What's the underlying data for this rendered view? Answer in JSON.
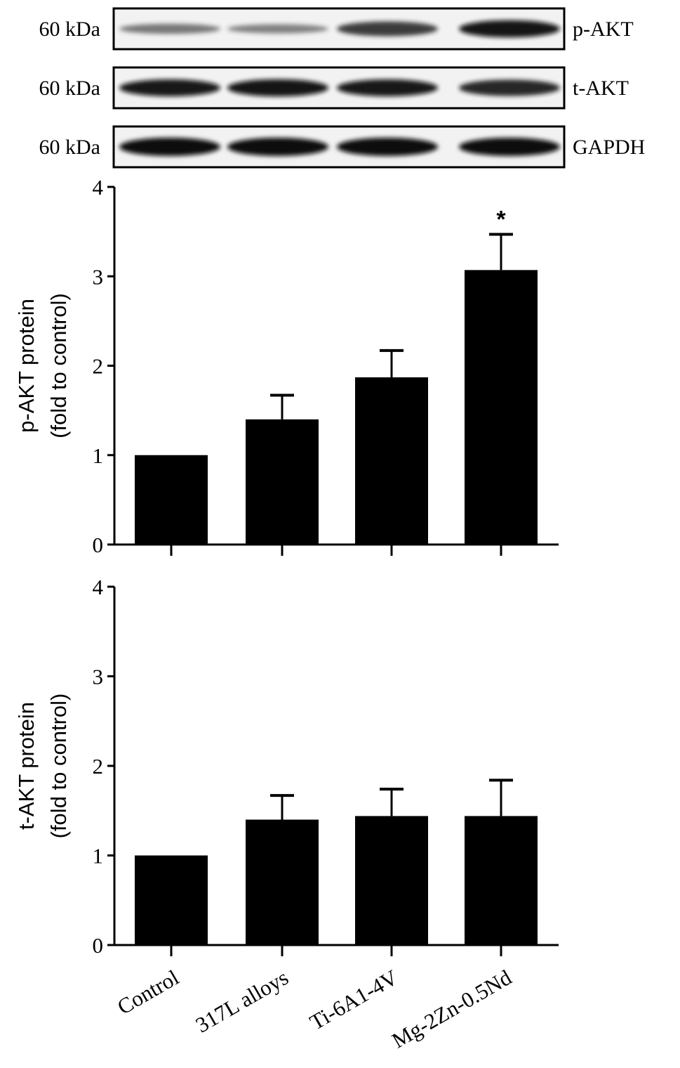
{
  "blot": {
    "rows": [
      {
        "size_label": "60 kDa",
        "protein": "p-AKT",
        "intensity": [
          0.35,
          0.28,
          0.72,
          0.92
        ]
      },
      {
        "size_label": "60 kDa",
        "protein": "t-AKT",
        "intensity": [
          0.9,
          0.92,
          0.9,
          0.85
        ]
      },
      {
        "size_label": "60 kDa",
        "protein": "GAPDH",
        "intensity": [
          1.0,
          1.0,
          1.0,
          1.0
        ]
      }
    ]
  },
  "chart_data": [
    {
      "type": "bar",
      "categories": [
        "Control",
        "317L alloys",
        "Ti-6A1-4V",
        "Mg-2Zn-0.5Nd"
      ],
      "values": [
        1.0,
        1.4,
        1.87,
        3.07
      ],
      "errors": [
        0,
        0.27,
        0.3,
        0.4
      ],
      "annotations": [
        "",
        "",
        "",
        "*"
      ],
      "ylabel_line1": "p-AKT protein",
      "ylabel_line2": "(fold to control)",
      "ylim": [
        0,
        4
      ],
      "yticks": [
        "0",
        "1",
        "2",
        "3",
        "4"
      ],
      "grid": false,
      "bar_color": "#000000"
    },
    {
      "type": "bar",
      "categories": [
        "Control",
        "317L alloys",
        "Ti-6A1-4V",
        "Mg-2Zn-0.5Nd"
      ],
      "values": [
        1.0,
        1.4,
        1.44,
        1.44
      ],
      "errors": [
        0,
        0.27,
        0.3,
        0.4
      ],
      "annotations": [
        "",
        "",
        "",
        ""
      ],
      "ylabel_line1": "t-AKT protein",
      "ylabel_line2": "(fold to control)",
      "ylim": [
        0,
        4
      ],
      "yticks": [
        "0",
        "1",
        "2",
        "3",
        "4"
      ],
      "grid": false,
      "bar_color": "#000000"
    }
  ]
}
